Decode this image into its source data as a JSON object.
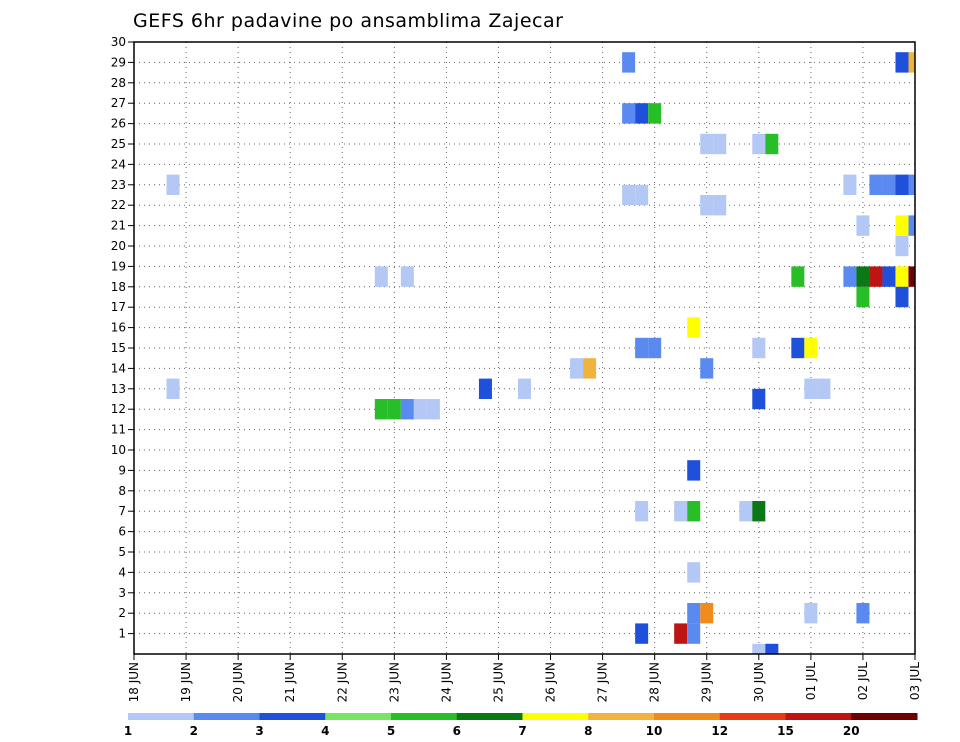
{
  "chart_data": {
    "type": "heatmap",
    "title": "GEFS 6hr padavine po ansamblima Zajecar",
    "xlabel": "",
    "ylabel": "",
    "x_tick_labels": [
      "18 JUN",
      "19 JUN",
      "20 JUN",
      "21 JUN",
      "22 JUN",
      "23 JUN",
      "24 JUN",
      "25 JUN",
      "26 JUN",
      "27 JUN",
      "28 JUN",
      "29 JUN",
      "30 JUN",
      "01 JUL",
      "02 JUL",
      "03 JUL"
    ],
    "y_tick_labels": [
      "1",
      "2",
      "3",
      "4",
      "5",
      "6",
      "7",
      "8",
      "9",
      "10",
      "11",
      "12",
      "13",
      "14",
      "15",
      "16",
      "17",
      "18",
      "19",
      "20",
      "21",
      "22",
      "23",
      "24",
      "25",
      "26",
      "27",
      "28",
      "29",
      "30"
    ],
    "xlim": [
      0,
      15
    ],
    "ylim": [
      0,
      30
    ],
    "grid": true,
    "legend_position": "bottom",
    "color_scale": {
      "labels": [
        "1",
        "2",
        "3",
        "4",
        "5",
        "6",
        "7",
        "8",
        "10",
        "12",
        "15",
        "20"
      ],
      "colors": [
        "#b4c8f5",
        "#5a8af0",
        "#1e50dc",
        "#78e664",
        "#28be28",
        "#0a7814",
        "#ffff00",
        "#f0b43c",
        "#f08c1e",
        "#e63c14",
        "#be1414",
        "#6e0000"
      ]
    },
    "cells": [
      {
        "x": 0.75,
        "y": 13,
        "v": 1
      },
      {
        "x": 0.75,
        "y": 23,
        "v": 1
      },
      {
        "x": 4.75,
        "y": 12,
        "v": 5
      },
      {
        "x": 5.0,
        "y": 12,
        "v": 5
      },
      {
        "x": 5.25,
        "y": 12,
        "v": 2
      },
      {
        "x": 5.5,
        "y": 12,
        "v": 1
      },
      {
        "x": 5.75,
        "y": 12,
        "v": 1
      },
      {
        "x": 4.75,
        "y": 18.5,
        "v": 1
      },
      {
        "x": 5.25,
        "y": 18.5,
        "v": 1
      },
      {
        "x": 6.75,
        "y": 13,
        "v": 3
      },
      {
        "x": 7.5,
        "y": 13,
        "v": 1
      },
      {
        "x": 8.5,
        "y": 14,
        "v": 1
      },
      {
        "x": 8.75,
        "y": 14,
        "v": 8
      },
      {
        "x": 9.5,
        "y": 22.5,
        "v": 1
      },
      {
        "x": 9.75,
        "y": 22.5,
        "v": 1
      },
      {
        "x": 9.5,
        "y": 26.5,
        "v": 2
      },
      {
        "x": 9.75,
        "y": 26.5,
        "v": 3
      },
      {
        "x": 10.0,
        "y": 26.5,
        "v": 5
      },
      {
        "x": 9.5,
        "y": 29,
        "v": 2
      },
      {
        "x": 9.75,
        "y": 15,
        "v": 2
      },
      {
        "x": 10.0,
        "y": 15,
        "v": 2
      },
      {
        "x": 9.75,
        "y": 7,
        "v": 1
      },
      {
        "x": 9.75,
        "y": 1,
        "v": 3
      },
      {
        "x": 10.5,
        "y": 1,
        "v": 15
      },
      {
        "x": 10.75,
        "y": 1,
        "v": 2
      },
      {
        "x": 10.75,
        "y": 2,
        "v": 2
      },
      {
        "x": 11.0,
        "y": 2,
        "v": 10
      },
      {
        "x": 10.75,
        "y": 4,
        "v": 1
      },
      {
        "x": 10.5,
        "y": 7,
        "v": 1
      },
      {
        "x": 10.75,
        "y": 7,
        "v": 5
      },
      {
        "x": 10.75,
        "y": 9,
        "v": 3
      },
      {
        "x": 10.75,
        "y": 16,
        "v": 7
      },
      {
        "x": 11.0,
        "y": 14,
        "v": 2
      },
      {
        "x": 11.0,
        "y": 22,
        "v": 1
      },
      {
        "x": 11.25,
        "y": 22,
        "v": 1
      },
      {
        "x": 11.0,
        "y": 25,
        "v": 1
      },
      {
        "x": 11.25,
        "y": 25,
        "v": 1
      },
      {
        "x": 11.75,
        "y": 7,
        "v": 1
      },
      {
        "x": 12.0,
        "y": 7,
        "v": 6
      },
      {
        "x": 12.0,
        "y": 12.5,
        "v": 3
      },
      {
        "x": 12.0,
        "y": 15,
        "v": 1
      },
      {
        "x": 12.0,
        "y": 25,
        "v": 1
      },
      {
        "x": 12.25,
        "y": 25,
        "v": 5
      },
      {
        "x": 12.0,
        "y": 0,
        "v": 1
      },
      {
        "x": 12.25,
        "y": 0,
        "v": 3
      },
      {
        "x": 12.75,
        "y": 15,
        "v": 3
      },
      {
        "x": 13.0,
        "y": 15,
        "v": 7
      },
      {
        "x": 12.75,
        "y": 18.5,
        "v": 5
      },
      {
        "x": 13.0,
        "y": 2,
        "v": 1
      },
      {
        "x": 13.0,
        "y": 13,
        "v": 1
      },
      {
        "x": 13.25,
        "y": 13,
        "v": 1
      },
      {
        "x": 13.75,
        "y": 23,
        "v": 1
      },
      {
        "x": 14.0,
        "y": 2,
        "v": 2
      },
      {
        "x": 14.0,
        "y": 17.5,
        "v": 5
      },
      {
        "x": 14.0,
        "y": 21,
        "v": 1
      },
      {
        "x": 13.75,
        "y": 18.5,
        "v": 2
      },
      {
        "x": 14.0,
        "y": 18.5,
        "v": 6
      },
      {
        "x": 14.25,
        "y": 18.5,
        "v": 15
      },
      {
        "x": 14.5,
        "y": 18.5,
        "v": 3
      },
      {
        "x": 14.75,
        "y": 18.5,
        "v": 7
      },
      {
        "x": 15.0,
        "y": 18.5,
        "v": 20
      },
      {
        "x": 14.75,
        "y": 17.5,
        "v": 3
      },
      {
        "x": 14.75,
        "y": 20,
        "v": 1
      },
      {
        "x": 14.75,
        "y": 21,
        "v": 7
      },
      {
        "x": 15.0,
        "y": 21,
        "v": 2
      },
      {
        "x": 14.25,
        "y": 23,
        "v": 2
      },
      {
        "x": 14.5,
        "y": 23,
        "v": 2
      },
      {
        "x": 14.75,
        "y": 23,
        "v": 3
      },
      {
        "x": 15.0,
        "y": 23,
        "v": 2
      },
      {
        "x": 14.75,
        "y": 29,
        "v": 3
      },
      {
        "x": 15.0,
        "y": 29,
        "v": 8
      }
    ]
  }
}
